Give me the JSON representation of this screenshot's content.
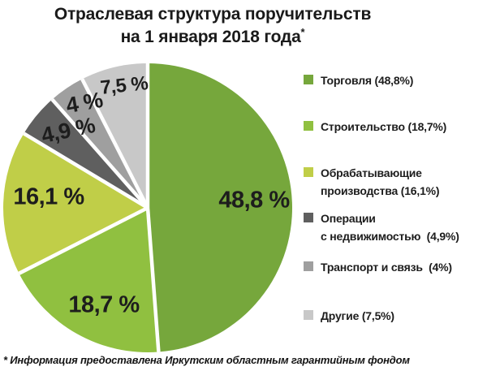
{
  "title": {
    "line1": "Отраслевая структура поручительств",
    "line2": "на 1 января 2018 года",
    "footnote_marker": "*"
  },
  "footnote": "* Информация предоставлена Иркутским областным гарантийным фондом",
  "chart_data": {
    "type": "pie",
    "title": "Отраслевая структура поручительств на 1 января 2018 года",
    "start_angle_deg": 0,
    "direction": "clockwise",
    "legend_position": "right",
    "separator_color": "#ffffff",
    "series": [
      {
        "name": "Торговля",
        "value": 48.8,
        "slice_label": "48,8 %",
        "color": "#76A73C"
      },
      {
        "name": "Строительство",
        "value": 18.7,
        "slice_label": "18,7 %",
        "color": "#90C040"
      },
      {
        "name": "Обрабатывающие производства",
        "value": 16.1,
        "slice_label": "16,1 %",
        "color": "#C0CE48"
      },
      {
        "name": "Операции с недвижимостью",
        "value": 4.9,
        "slice_label": "4,9 %",
        "color": "#5F5F5F"
      },
      {
        "name": "Транспорт и связь",
        "value": 4.0,
        "slice_label": "4 %",
        "color": "#9F9F9F"
      },
      {
        "name": "Другие",
        "value": 7.5,
        "slice_label": "7,5 %",
        "color": "#C8C8C8"
      }
    ]
  },
  "legend": {
    "items": [
      {
        "lines": [
          "Торговля (48,8%)"
        ]
      },
      {
        "lines": [
          "Строительство (18,7%)"
        ]
      },
      {
        "lines": [
          "Обрабатывающие",
          "производства (16,1%)"
        ]
      },
      {
        "lines": [
          "Операции",
          "с недвижимостью  (4,9%)"
        ]
      },
      {
        "lines": [
          "Транспорт и связь  (4%)"
        ]
      },
      {
        "lines": [
          "Другие (7,5%)"
        ]
      }
    ]
  }
}
